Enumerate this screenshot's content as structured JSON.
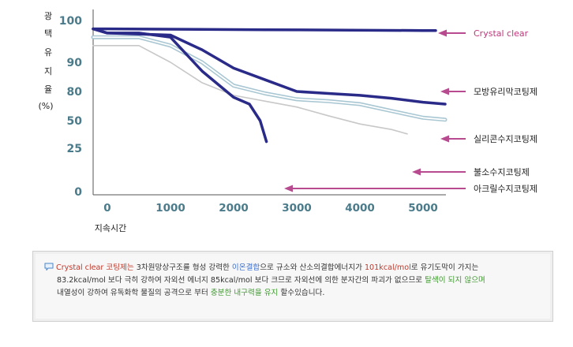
{
  "chart_data": {
    "type": "line",
    "ylabel_chars": [
      "광",
      "택",
      "유",
      "지",
      "율"
    ],
    "ylabel_unit": "(%)",
    "xlabel": "지속시간",
    "y_tick_labels": [
      "100",
      "90",
      "80",
      "50",
      "25",
      "0"
    ],
    "x_tick_labels": [
      "0",
      "1000",
      "2000",
      "3000",
      "4000",
      "5000"
    ],
    "xlim": [
      0,
      5300
    ],
    "grid": false,
    "series": [
      {
        "name": "Crystal clear",
        "color": "#2a2a88",
        "style": "thick",
        "points": [
          [
            -200,
            98
          ],
          [
            0,
            98
          ],
          [
            2500,
            97.8
          ],
          [
            5000,
            97.6
          ],
          [
            5200,
            97.6
          ]
        ]
      },
      {
        "name": "모방유리막코팅제",
        "color": "#2a2a88",
        "style": "thick",
        "points": [
          [
            -200,
            98
          ],
          [
            0,
            97
          ],
          [
            1000,
            96.5
          ],
          [
            1500,
            93
          ],
          [
            2000,
            88
          ],
          [
            2500,
            84
          ],
          [
            3000,
            80
          ],
          [
            3500,
            78
          ],
          [
            4000,
            76
          ],
          [
            4500,
            73
          ],
          [
            5000,
            69
          ],
          [
            5350,
            67
          ]
        ]
      },
      {
        "name": "실리콘수지코팅제",
        "color": "#a9c7d3",
        "style": "double",
        "points": [
          [
            -200,
            96
          ],
          [
            0,
            96
          ],
          [
            500,
            96
          ],
          [
            1000,
            94
          ],
          [
            1500,
            90
          ],
          [
            2000,
            82
          ],
          [
            2500,
            78
          ],
          [
            3000,
            72
          ],
          [
            3500,
            70
          ],
          [
            4000,
            67
          ],
          [
            4500,
            60
          ],
          [
            5000,
            53
          ],
          [
            5350,
            51
          ]
        ]
      },
      {
        "name": "불소수지코팅제",
        "color": "#c8c8c8",
        "style": "thin",
        "points": [
          [
            -200,
            94
          ],
          [
            0,
            94
          ],
          [
            500,
            94
          ],
          [
            1000,
            90
          ],
          [
            1500,
            83
          ],
          [
            2000,
            76
          ],
          [
            2500,
            70
          ],
          [
            3000,
            64
          ],
          [
            3500,
            55
          ],
          [
            4000,
            47
          ],
          [
            4500,
            42
          ],
          [
            4750,
            38
          ]
        ]
      },
      {
        "name": "아크릴수지코팅제",
        "color": "#2a2a88",
        "style": "thick",
        "points": [
          [
            -200,
            98
          ],
          [
            0,
            97
          ],
          [
            500,
            97
          ],
          [
            1000,
            96
          ],
          [
            1500,
            87
          ],
          [
            2000,
            74
          ],
          [
            2250,
            67
          ],
          [
            2420,
            50
          ],
          [
            2520,
            31
          ]
        ]
      }
    ],
    "legend_labels": [
      {
        "text": "Crystal clear",
        "color": "#c0357a"
      },
      {
        "text": "모방유리막코팅제",
        "color": "#222222"
      },
      {
        "text": "실리콘수지코팅제",
        "color": "#222222"
      },
      {
        "text": "불소수지코팅제",
        "color": "#222222"
      },
      {
        "text": "아크릴수지코팅제",
        "color": "#222222"
      }
    ],
    "axis_label_color": "#4b7b8a",
    "arrow_color": "#b84a8f"
  },
  "note": {
    "icon": "speech-bubble-icon",
    "line1": [
      {
        "text": "Crystal clear 코팅제는",
        "style": "red"
      },
      {
        "text": " 3차원망상구조를 형성 강력한 ",
        "style": "plain"
      },
      {
        "text": "이온결합",
        "style": "blue"
      },
      {
        "text": "으로 규소와 산소의결합에너지가 ",
        "style": "plain"
      },
      {
        "text": "101kcal/mol",
        "style": "red"
      },
      {
        "text": "로 유기도막이 가지는",
        "style": "plain"
      }
    ],
    "line2": [
      {
        "text": "83.2kcal/mol 보다 극히 강하여 자외선 에너지 85kcal/mol 보다 크므로 자외선에 의한 분자간의 파괴가 없으므로 ",
        "style": "plain"
      },
      {
        "text": "탈색이 되지 않으며",
        "style": "green"
      }
    ],
    "line3": [
      {
        "text": "내열성이 강하여 유독화학 물질의 공격으로 부터 ",
        "style": "plain"
      },
      {
        "text": "충분한 내구력을 유지",
        "style": "green"
      },
      {
        "text": " 할수있습니다.",
        "style": "plain"
      }
    ]
  }
}
